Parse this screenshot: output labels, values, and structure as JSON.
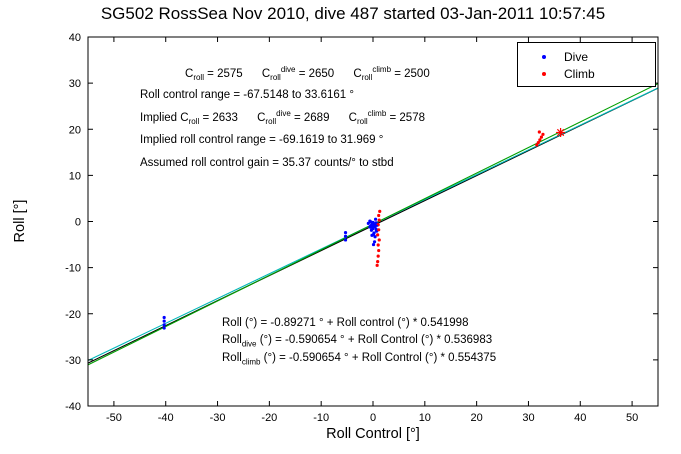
{
  "chart_data": {
    "type": "scatter",
    "title": "SG502 RossSea Nov 2010, dive 487 started 03-Jan-2011 10:57:45",
    "xlabel": "Roll Control [°]",
    "ylabel": "Roll [°]",
    "xlim": [
      -55,
      55
    ],
    "ylim": [
      -40,
      40
    ],
    "xticks": [
      -50,
      -40,
      -30,
      -20,
      -10,
      0,
      10,
      20,
      30,
      40,
      50
    ],
    "yticks": [
      -40,
      -30,
      -20,
      -10,
      0,
      10,
      20,
      30,
      40
    ],
    "grid": false,
    "legend": {
      "position": "top-right",
      "items": [
        {
          "label": "Dive",
          "color": "#0000ff",
          "marker": "dot"
        },
        {
          "label": "Climb",
          "color": "#ff0000",
          "marker": "dot"
        }
      ]
    },
    "series": [
      {
        "name": "Dive",
        "color": "#0000ff",
        "marker": "dot",
        "points": [
          [
            -40.3,
            -20.8
          ],
          [
            -40.3,
            -21.6
          ],
          [
            -40.3,
            -22.4
          ],
          [
            -40.3,
            -23.1
          ],
          [
            -5.3,
            -2.4
          ],
          [
            -5.3,
            -3.2
          ],
          [
            -5.3,
            -4.0
          ],
          [
            -0.9,
            -0.4
          ],
          [
            -0.6,
            -1.2
          ],
          [
            -0.6,
            0.1
          ],
          [
            -0.3,
            -0.8
          ],
          [
            -0.3,
            -1.9
          ],
          [
            0,
            -0.2
          ],
          [
            0,
            -1.4
          ],
          [
            0.2,
            -0.6
          ],
          [
            0.2,
            -2.5
          ],
          [
            0.4,
            -1.1
          ],
          [
            0.4,
            -3.3
          ],
          [
            0.6,
            -0.3
          ],
          [
            0.6,
            -1.7
          ],
          [
            0.8,
            -0.8
          ],
          [
            0.3,
            -4.4
          ],
          [
            0.1,
            -5.0
          ],
          [
            -0.2,
            -3.0
          ],
          [
            0.5,
            0.5
          ],
          [
            0.7,
            -2.1
          ],
          [
            -0.4,
            -0.1
          ],
          [
            0.1,
            -2.8
          ]
        ]
      },
      {
        "name": "Climb",
        "color": "#ff0000",
        "marker": "dot",
        "points": [
          [
            0.9,
            -8.7
          ],
          [
            1.0,
            -7.5
          ],
          [
            1.1,
            -6.3
          ],
          [
            1.0,
            -5.1
          ],
          [
            1.2,
            -4.0
          ],
          [
            0.9,
            -2.9
          ],
          [
            1.1,
            -1.8
          ],
          [
            1.0,
            -0.7
          ],
          [
            1.2,
            0.3
          ],
          [
            1.1,
            1.3
          ],
          [
            1.3,
            2.2
          ],
          [
            0.8,
            -9.5
          ],
          [
            31.6,
            16.6
          ],
          [
            31.9,
            17.1
          ],
          [
            32.2,
            17.7
          ],
          [
            32.5,
            18.3
          ],
          [
            32.8,
            18.9
          ],
          [
            32.1,
            19.4
          ]
        ]
      },
      {
        "name": "Dive center",
        "color": "#0000ff",
        "marker": "star",
        "points": [
          [
            0.1,
            -0.9
          ]
        ]
      },
      {
        "name": "Climb center",
        "color": "#ff0000",
        "marker": "star",
        "points": [
          [
            36.2,
            19.3
          ]
        ]
      }
    ],
    "fit_lines": [
      {
        "name": "roll-fit",
        "intercept": -0.89271,
        "slope": 0.541998,
        "color": "#000000"
      },
      {
        "name": "dive-fit",
        "intercept": -0.590654,
        "slope": 0.536983,
        "color": "#00b8b8"
      },
      {
        "name": "climb-fit",
        "intercept": -0.590654,
        "slope": 0.554375,
        "color": "#00a000"
      }
    ],
    "annotations": {
      "top": [
        "C_{roll} = 2575      C_{roll}^{dive} = 2650      C_{roll}^{climb} = 2500",
        "Roll control range = -67.5148 to 33.6161 °",
        "Implied C_{roll} = 2633      C_{roll}^{dive} = 2689      C_{roll}^{climb} = 2578",
        "Implied roll control range = -69.1619 to 31.969 °",
        "Assumed roll control gain = 35.37 counts/° to stbd"
      ],
      "bottom": [
        "Roll (°) = -0.89271 ° + Roll control (°) * 0.541998",
        "Roll_{dive} (°) = -0.590654 ° + Roll Control (°) * 0.536983",
        "Roll_{climb} (°) = -0.590654 ° + Roll Control (°) * 0.554375"
      ]
    }
  }
}
